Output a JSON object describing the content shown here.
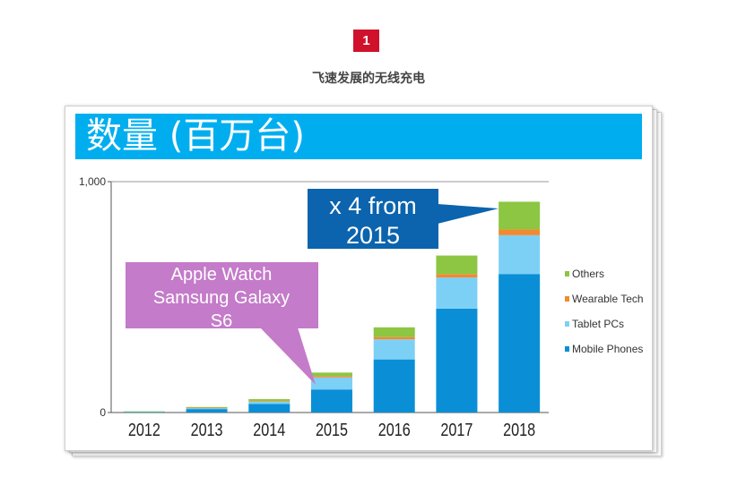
{
  "section": {
    "number": "1",
    "title": "飞速发展的无线充电"
  },
  "slide": {
    "banner_title": "数量 (百万台)"
  },
  "colors": {
    "mobile": "#0a8fd6",
    "tablet": "#7dd0f5",
    "wearable": "#f28a30",
    "others": "#8cc642",
    "banner": "#00aeef",
    "callout_blue": "#0b64ad",
    "callout_purple": "#c47bc9"
  },
  "chart_data": {
    "type": "bar",
    "stacked": true,
    "title": "数量 (百万台)",
    "xlabel": "",
    "ylabel": "",
    "categories": [
      "2012",
      "2013",
      "2014",
      "2015",
      "2016",
      "2017",
      "2018"
    ],
    "series": [
      {
        "name": "Mobile Phones",
        "color": "#0a8fd6",
        "values": [
          3,
          15,
          37,
          100,
          230,
          450,
          600
        ]
      },
      {
        "name": "Tablet PCs",
        "color": "#7dd0f5",
        "values": [
          1,
          5,
          10,
          52,
          87,
          135,
          168
        ]
      },
      {
        "name": "Wearable Tech",
        "color": "#f28a30",
        "values": [
          0,
          1,
          3,
          6,
          10,
          15,
          25
        ]
      },
      {
        "name": "Others",
        "color": "#8cc642",
        "values": [
          1,
          3,
          8,
          15,
          42,
          80,
          120
        ]
      }
    ],
    "ylim": [
      0,
      1000
    ],
    "yticks": [
      0,
      1000
    ],
    "ytick_labels": [
      "0",
      "1,000"
    ],
    "legend_position": "right",
    "grid": false,
    "annotations": [
      {
        "text_lines": [
          "x 4 from",
          "2015"
        ],
        "target": "2018",
        "style": "blue-callout"
      },
      {
        "text_lines": [
          "Apple Watch",
          "Samsung Galaxy",
          "S6"
        ],
        "target": "2015",
        "style": "purple-callout"
      }
    ]
  }
}
